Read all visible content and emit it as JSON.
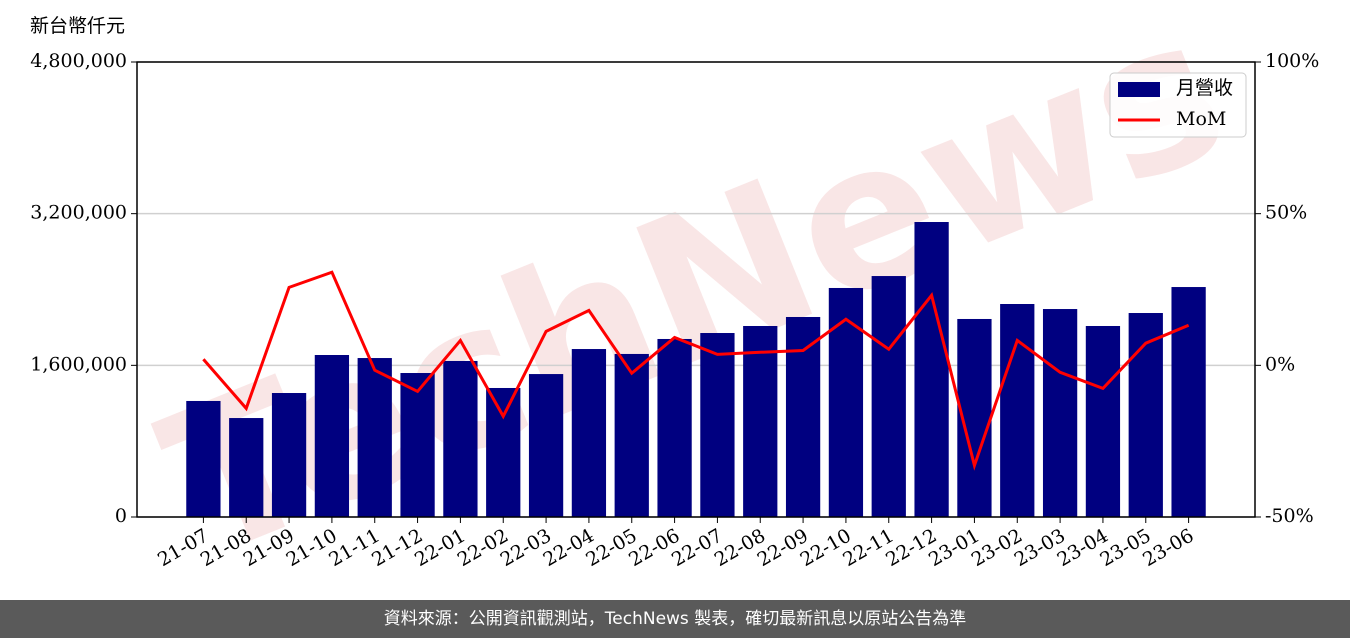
{
  "chart_data": {
    "type": "bar",
    "y_label": "新台幣仟元",
    "watermark": "TechNews",
    "categories": [
      "21-07",
      "21-08",
      "21-09",
      "21-10",
      "21-11",
      "21-12",
      "22-01",
      "22-02",
      "22-03",
      "22-04",
      "22-05",
      "22-06",
      "22-07",
      "22-08",
      "22-09",
      "22-10",
      "22-11",
      "22-12",
      "23-01",
      "23-02",
      "23-03",
      "23-04",
      "23-05",
      "23-06"
    ],
    "series": [
      {
        "name": "月營收",
        "type": "bar",
        "color": "#000080",
        "values": [
          1224000,
          1044000,
          1308000,
          1709000,
          1677000,
          1519000,
          1646000,
          1361000,
          1508000,
          1772000,
          1720000,
          1878000,
          1941000,
          2015000,
          2110000,
          2416000,
          2542000,
          3112000,
          2089000,
          2247000,
          2194000,
          2015000,
          2152000,
          2426000
        ]
      },
      {
        "name": "MoM",
        "type": "line",
        "axis": "y2",
        "color": "#ff0000",
        "values": [
          2.0,
          -14.2,
          25.7,
          30.7,
          -1.6,
          -8.6,
          8.2,
          -16.8,
          11.2,
          18.1,
          -2.6,
          9.2,
          3.6,
          4.3,
          4.9,
          15.2,
          5.3,
          23.1,
          -33.0,
          8.2,
          -2.3,
          -7.6,
          7.3,
          13.2
        ]
      }
    ],
    "ylim": [
      0,
      4800000
    ],
    "yticks": [
      0,
      {
        "value": 1600000,
        "label": "1,600,000"
      },
      {
        "value": 3200000,
        "label": "3,200,000"
      },
      {
        "value": 4800000,
        "label": "4,800,000"
      }
    ],
    "y2lim": [
      -50,
      100
    ],
    "y2ticks": [
      {
        "value": -50,
        "label": "-50%"
      },
      {
        "value": 0,
        "label": "0%"
      },
      {
        "value": 50,
        "label": "50%"
      },
      {
        "value": 100,
        "label": "100%"
      }
    ],
    "grid": true,
    "legend": "upper right"
  },
  "footer": "資料來源：公開資訊觀測站，TechNews 製表，確切最新訊息以原站公告為準"
}
